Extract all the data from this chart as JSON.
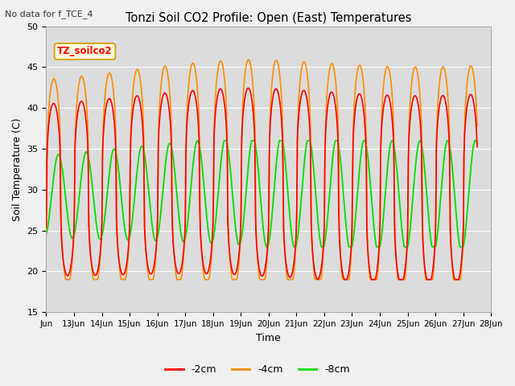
{
  "title": "Tonzi Soil CO2 Profile: Open (East) Temperatures",
  "subtitle": "No data for f_TCE_4",
  "xlabel": "Time",
  "ylabel": "Soil Temperature (C)",
  "ylim": [
    15,
    50
  ],
  "yticks": [
    15,
    20,
    25,
    30,
    35,
    40,
    45,
    50
  ],
  "legend_label": "TZ_soilco2",
  "series_labels": [
    "-2cm",
    "-4cm",
    "-8cm"
  ],
  "series_colors": [
    "#ff0000",
    "#ff8c00",
    "#00dd00"
  ],
  "fig_bg_color": "#f0f0f0",
  "plot_bg_color": "#dcdcdc",
  "grid_color": "#ffffff"
}
